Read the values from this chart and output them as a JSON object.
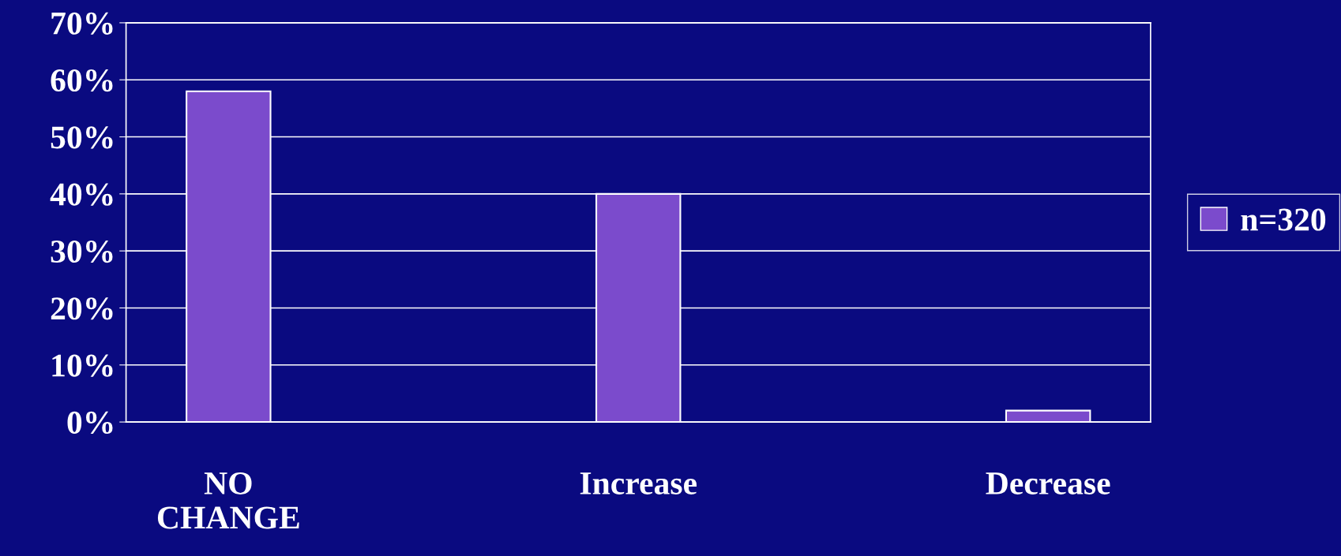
{
  "chart_data": {
    "type": "bar",
    "categories": [
      "NO\nCHANGE",
      "Increase",
      "Decrease"
    ],
    "series": [
      {
        "name": "n=320",
        "color": "#7b4bcc",
        "values": [
          58,
          40,
          2
        ]
      }
    ],
    "ylim": [
      0,
      70
    ],
    "yticks": [
      {
        "value": 0,
        "label": "0%"
      },
      {
        "value": 10,
        "label": "10%"
      },
      {
        "value": 20,
        "label": "20%"
      },
      {
        "value": 30,
        "label": "30%"
      },
      {
        "value": 40,
        "label": "40%"
      },
      {
        "value": 50,
        "label": "50%"
      },
      {
        "value": 60,
        "label": "60%"
      },
      {
        "value": 70,
        "label": "70%"
      }
    ],
    "grid": "y",
    "legend": "right"
  }
}
